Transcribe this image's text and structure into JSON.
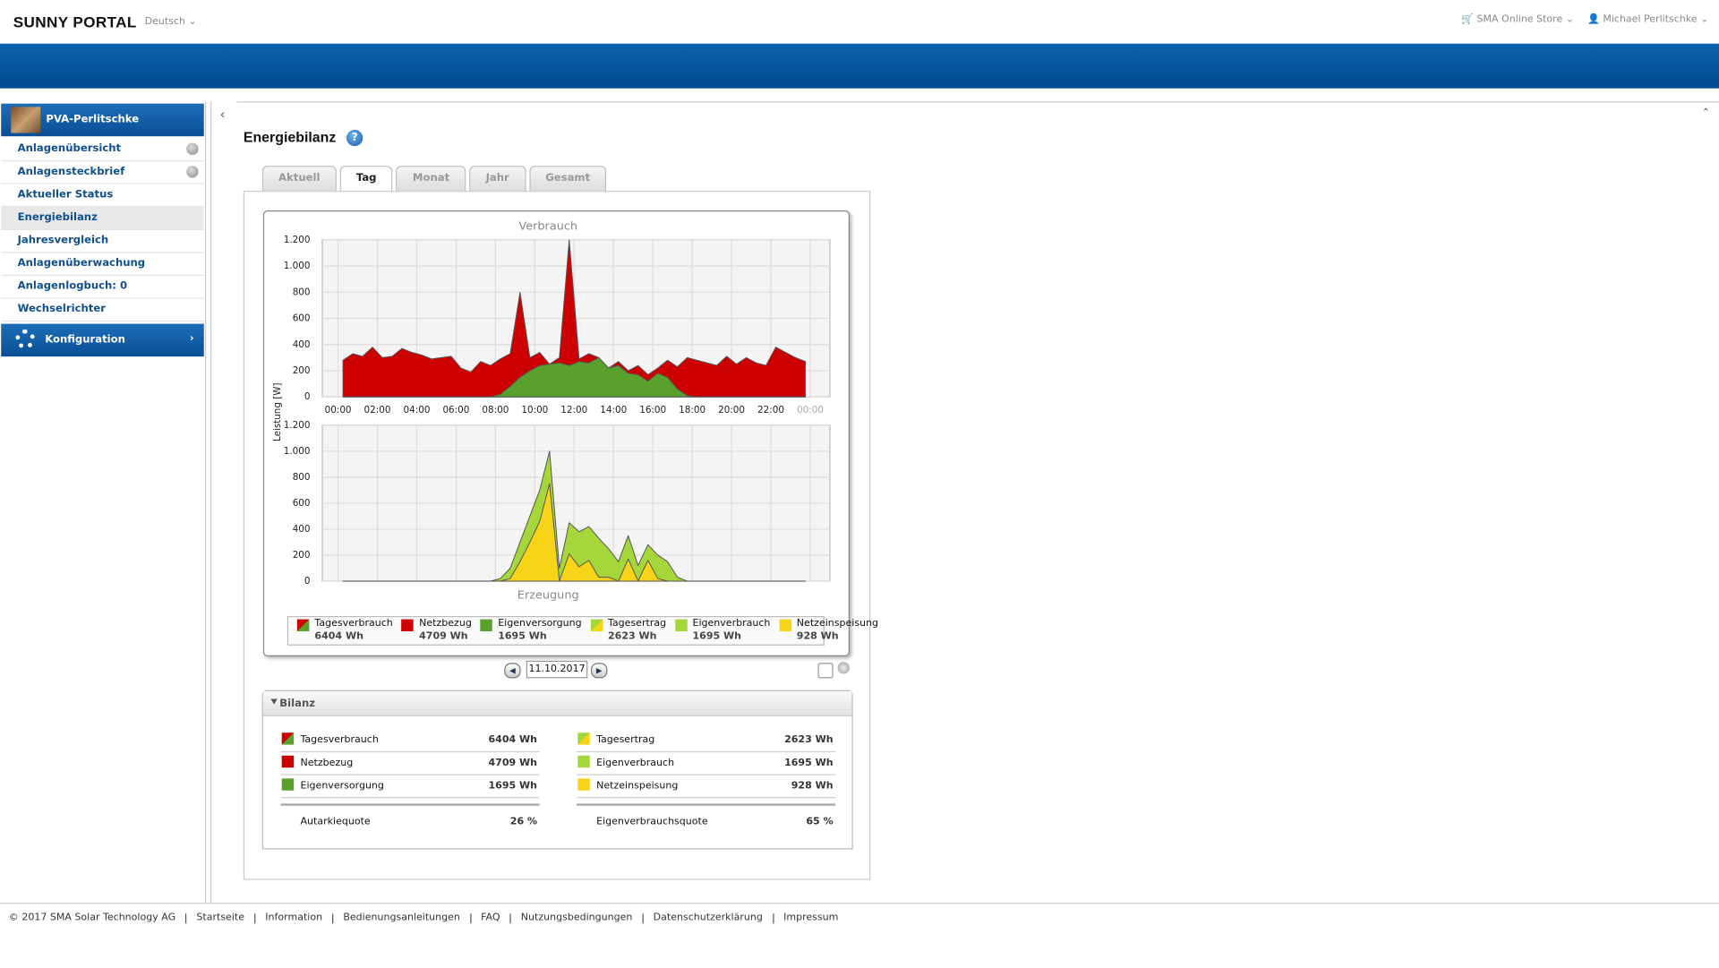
{
  "header": {
    "brand": "SUNNY PORTAL",
    "language": "Deutsch",
    "store": "SMA Online Store",
    "user": "Michael Perlitschke"
  },
  "sidebar": {
    "plant": "PVA-Perlitschke",
    "selected": 3,
    "items": [
      {
        "label": "Anlagenübersicht",
        "globe": true
      },
      {
        "label": "Anlagensteckbrief",
        "globe": true
      },
      {
        "label": "Aktueller Status"
      },
      {
        "label": "Energiebilanz"
      },
      {
        "label": "Jahresvergleich"
      },
      {
        "label": "Anlagenüberwachung"
      },
      {
        "label": "Anlagenlogbuch: 0"
      },
      {
        "label": "Wechselrichter"
      }
    ],
    "config": "Konfiguration"
  },
  "page": {
    "title": "Energiebilanz",
    "tabs": [
      "Aktuell",
      "Tag",
      "Monat",
      "Jahr",
      "Gesamt"
    ],
    "active_tab": 1,
    "date": "11.10.2017"
  },
  "chart": {
    "type": "area",
    "title_top": "Verbrauch",
    "title_bottom": "Erzeugung",
    "ylabel": "Leistung [W]",
    "xlim": [
      -0.8,
      25
    ],
    "xticks": [
      {
        "value": 0,
        "label": "00:00"
      },
      {
        "value": 2,
        "label": "02:00"
      },
      {
        "value": 4,
        "label": "04:00"
      },
      {
        "value": 6,
        "label": "06:00"
      },
      {
        "value": 8,
        "label": "08:00"
      },
      {
        "value": 10,
        "label": "10:00"
      },
      {
        "value": 12,
        "label": "12:00"
      },
      {
        "value": 14,
        "label": "14:00"
      },
      {
        "value": 16,
        "label": "16:00"
      },
      {
        "value": 18,
        "label": "18:00"
      },
      {
        "value": 20,
        "label": "20:00"
      },
      {
        "value": 22,
        "label": "22:00"
      },
      {
        "value": 24,
        "label": "00:00"
      }
    ],
    "ylim": [
      0,
      1200
    ],
    "yticks": [
      0,
      200,
      400,
      600,
      800,
      {
        "value": 1000,
        "label": "1.000"
      },
      {
        "value": 1200,
        "label": "1.200"
      }
    ],
    "grid": true,
    "x": [
      0.25,
      0.75,
      1.25,
      1.75,
      2.25,
      2.75,
      3.25,
      3.75,
      4.25,
      4.75,
      5.25,
      5.75,
      6.25,
      6.75,
      7.25,
      7.75,
      8.25,
      8.75,
      9.25,
      9.75,
      10.25,
      10.75,
      11.25,
      11.75,
      12.25,
      12.75,
      13.25,
      13.75,
      14.25,
      14.75,
      15.25,
      15.75,
      16.25,
      16.75,
      17.25,
      17.75,
      18.25,
      18.75,
      19.25,
      19.75,
      20.25,
      20.75,
      21.25,
      21.75,
      22.25,
      22.75,
      23.25,
      23.75
    ],
    "consumption": {
      "color": "#cc0000",
      "values": [
        280,
        330,
        310,
        380,
        300,
        310,
        370,
        340,
        320,
        290,
        300,
        310,
        220,
        190,
        270,
        240,
        290,
        330,
        800,
        300,
        340,
        250,
        300,
        1200,
        290,
        330,
        300,
        220,
        270,
        200,
        240,
        170,
        220,
        280,
        230,
        300,
        280,
        260,
        240,
        310,
        250,
        300,
        260,
        240,
        380,
        340,
        300,
        270
      ]
    },
    "self_supply": {
      "color": "#5aa02c",
      "values": [
        0,
        0,
        0,
        0,
        0,
        0,
        0,
        0,
        0,
        0,
        0,
        0,
        0,
        0,
        0,
        0,
        20,
        80,
        150,
        200,
        240,
        250,
        260,
        240,
        270,
        260,
        300,
        220,
        240,
        180,
        170,
        120,
        180,
        150,
        60,
        10,
        0,
        0,
        0,
        0,
        0,
        0,
        0,
        0,
        0,
        0,
        0,
        0
      ]
    },
    "production": {
      "color": "#a5d63a",
      "values": [
        0,
        0,
        0,
        0,
        0,
        0,
        0,
        0,
        0,
        0,
        0,
        0,
        0,
        0,
        0,
        0,
        20,
        100,
        300,
        500,
        700,
        1000,
        100,
        450,
        380,
        420,
        330,
        250,
        150,
        350,
        120,
        280,
        200,
        150,
        30,
        0,
        0,
        0,
        0,
        0,
        0,
        0,
        0,
        0,
        0,
        0,
        0,
        0
      ]
    },
    "feed_in": {
      "color": "#f7d417",
      "values": [
        0,
        0,
        0,
        0,
        0,
        0,
        0,
        0,
        0,
        0,
        0,
        0,
        0,
        0,
        0,
        0,
        0,
        20,
        150,
        300,
        460,
        750,
        0,
        210,
        110,
        160,
        30,
        30,
        0,
        170,
        0,
        160,
        20,
        0,
        0,
        0,
        0,
        0,
        0,
        0,
        0,
        0,
        0,
        0,
        0,
        0,
        0,
        0
      ]
    },
    "legend": [
      {
        "name": "Tagesverbrauch",
        "value": "6404 Wh",
        "colors": [
          "#cc0000",
          "#5aa02c"
        ]
      },
      {
        "name": "Netzbezug",
        "value": "4709 Wh",
        "colors": [
          "#cc0000"
        ]
      },
      {
        "name": "Eigenversorgung",
        "value": "1695 Wh",
        "colors": [
          "#5aa02c"
        ]
      },
      {
        "name": "Tagesertrag",
        "value": "2623 Wh",
        "colors": [
          "#a5d63a",
          "#f7d417"
        ]
      },
      {
        "name": "Eigenverbrauch",
        "value": "1695 Wh",
        "colors": [
          "#a5d63a"
        ]
      },
      {
        "name": "Netzeinspeisung",
        "value": "928 Wh",
        "colors": [
          "#f7d417"
        ]
      }
    ]
  },
  "bilanz": {
    "title": "Bilanz",
    "left": [
      {
        "label": "Tagesverbrauch",
        "value": "6404 Wh"
      },
      {
        "label": "Netzbezug",
        "value": "4709 Wh"
      },
      {
        "label": "Eigenversorgung",
        "value": "1695 Wh"
      }
    ],
    "left_quote": {
      "label": "Autarkiequote",
      "value": "26 %"
    },
    "right": [
      {
        "label": "Tagesertrag",
        "value": "2623 Wh"
      },
      {
        "label": "Eigenverbrauch",
        "value": "1695 Wh"
      },
      {
        "label": "Netzeinspeisung",
        "value": "928 Wh"
      }
    ],
    "right_quote": {
      "label": "Eigenverbrauchsquote",
      "value": "65 %"
    }
  },
  "footer": {
    "copyright": "© 2017 SMA Solar Technology AG",
    "links": [
      "Startseite",
      "Information",
      "Bedienungsanleitungen",
      "FAQ",
      "Nutzungsbedingungen",
      "Datenschutzerklärung",
      "Impressum"
    ]
  }
}
